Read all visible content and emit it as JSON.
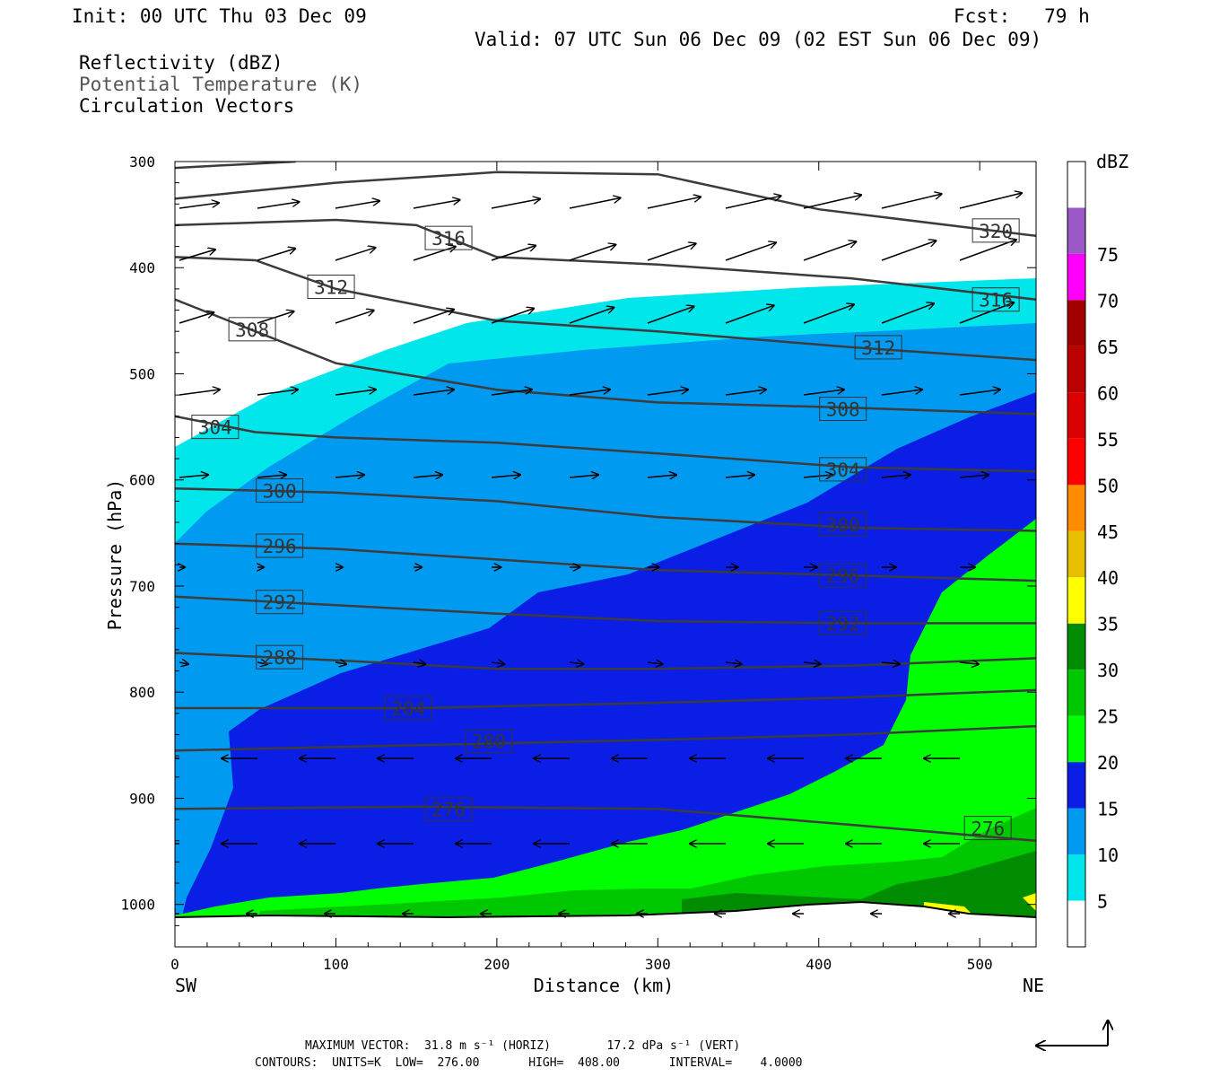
{
  "header": {
    "init": "Init: 00 UTC Thu 03 Dec 09",
    "fcst": "Fcst:   79 h",
    "valid": "Valid: 07 UTC Sun 06 Dec 09 (02 EST Sun 06 Dec 09)",
    "field1": "Reflectivity (dBZ)",
    "field2": "Potential Temperature (K)",
    "field3": "Circulation Vectors"
  },
  "footer": {
    "max_vector": "MAXIMUM VECTOR:  31.8 m s⁻¹ (HORIZ)        17.2 dPa s⁻¹ (VERT)",
    "contours": "CONTOURS:  UNITS=K  LOW=  276.00       HIGH=  408.00       INTERVAL=    4.0000"
  },
  "colors": {
    "c5": "#00e6eb",
    "c10": "#009bf0",
    "c15": "#0a1ee6",
    "c20": "#00ff00",
    "c25": "#00c800",
    "c30": "#008c00",
    "c35": "#ffff00",
    "c40": "#e6c000",
    "c45": "#ff8c00",
    "c50": "#ff0000",
    "c55": "#dc0000",
    "c60": "#bb0000",
    "c65": "#a00000",
    "c70": "#ff00ff",
    "c75": "#9b59c8",
    "contour": "#3c3c3c"
  },
  "chart_data": {
    "type": "heatmap",
    "title": "Reflectivity (dBZ) / Potential Temperature (K) / Circulation Vectors",
    "xlabel": "Distance (km)",
    "ylabel": "Pressure (hPa)",
    "x_ticks": [
      "0",
      "100",
      "200",
      "300",
      "400",
      "500"
    ],
    "y_ticks": [
      "300",
      "400",
      "500",
      "600",
      "700",
      "800",
      "900",
      "1000"
    ],
    "x_range": [
      0,
      535
    ],
    "y_range": [
      300,
      1040
    ],
    "y_reversed": true,
    "x_end_labels": {
      "left": "SW",
      "right": "NE"
    },
    "colorbar": {
      "label": "dBZ",
      "levels": [
        "5",
        "10",
        "15",
        "20",
        "25",
        "30",
        "35",
        "40",
        "45",
        "50",
        "55",
        "60",
        "65",
        "70",
        "75"
      ]
    },
    "contours": [
      {
        "label": "276",
        "points": [
          [
            0,
            910
          ],
          [
            150,
            908
          ],
          [
            300,
            910
          ],
          [
            420,
            925
          ],
          [
            535,
            940
          ]
        ],
        "label_at": [
          [
            170,
            910
          ],
          [
            505,
            928
          ]
        ]
      },
      {
        "label": "280",
        "points": [
          [
            0,
            855
          ],
          [
            150,
            850
          ],
          [
            300,
            845
          ],
          [
            420,
            840
          ],
          [
            535,
            832
          ]
        ],
        "label_at": [
          [
            195,
            846
          ]
        ]
      },
      {
        "label": "284",
        "points": [
          [
            0,
            815
          ],
          [
            150,
            815
          ],
          [
            300,
            810
          ],
          [
            420,
            805
          ],
          [
            535,
            798
          ]
        ],
        "label_at": [
          [
            145,
            815
          ]
        ]
      },
      {
        "label": "288",
        "points": [
          [
            0,
            763
          ],
          [
            100,
            770
          ],
          [
            200,
            778
          ],
          [
            300,
            778
          ],
          [
            420,
            775
          ],
          [
            535,
            768
          ]
        ],
        "label_at": [
          [
            65,
            767
          ]
        ]
      },
      {
        "label": "292",
        "points": [
          [
            0,
            710
          ],
          [
            100,
            718
          ],
          [
            200,
            726
          ],
          [
            300,
            733
          ],
          [
            420,
            735
          ],
          [
            535,
            735
          ]
        ],
        "label_at": [
          [
            65,
            715
          ],
          [
            415,
            735
          ]
        ]
      },
      {
        "label": "296",
        "points": [
          [
            0,
            660
          ],
          [
            100,
            665
          ],
          [
            200,
            675
          ],
          [
            300,
            685
          ],
          [
            420,
            690
          ],
          [
            535,
            695
          ]
        ],
        "label_at": [
          [
            65,
            662
          ],
          [
            415,
            690
          ]
        ]
      },
      {
        "label": "300",
        "points": [
          [
            0,
            608
          ],
          [
            100,
            612
          ],
          [
            200,
            620
          ],
          [
            300,
            635
          ],
          [
            420,
            645
          ],
          [
            535,
            648
          ]
        ],
        "label_at": [
          [
            65,
            610
          ],
          [
            415,
            642
          ]
        ]
      },
      {
        "label": "304",
        "points": [
          [
            0,
            540
          ],
          [
            50,
            555
          ],
          [
            100,
            560
          ],
          [
            200,
            565
          ],
          [
            300,
            575
          ],
          [
            420,
            588
          ],
          [
            535,
            592
          ]
        ],
        "label_at": [
          [
            25,
            550
          ],
          [
            415,
            590
          ]
        ]
      },
      {
        "label": "308",
        "points": [
          [
            0,
            430
          ],
          [
            50,
            460
          ],
          [
            100,
            490
          ],
          [
            200,
            515
          ],
          [
            300,
            527
          ],
          [
            420,
            532
          ],
          [
            535,
            538
          ]
        ],
        "label_at": [
          [
            48,
            458
          ],
          [
            415,
            533
          ]
        ]
      },
      {
        "label": "312",
        "points": [
          [
            0,
            390
          ],
          [
            50,
            393
          ],
          [
            100,
            420
          ],
          [
            200,
            450
          ],
          [
            300,
            460
          ],
          [
            420,
            475
          ],
          [
            535,
            487
          ]
        ],
        "label_at": [
          [
            97,
            418
          ],
          [
            437,
            475
          ]
        ]
      },
      {
        "label": "316",
        "points": [
          [
            0,
            360
          ],
          [
            100,
            355
          ],
          [
            150,
            360
          ],
          [
            200,
            390
          ],
          [
            300,
            397
          ],
          [
            420,
            410
          ],
          [
            535,
            430
          ]
        ],
        "label_at": [
          [
            170,
            372
          ],
          [
            510,
            430
          ]
        ]
      },
      {
        "label": "320",
        "points": [
          [
            0,
            335
          ],
          [
            100,
            320
          ],
          [
            200,
            310
          ],
          [
            300,
            312
          ],
          [
            400,
            345
          ],
          [
            535,
            370
          ]
        ],
        "label_at": [
          [
            510,
            365
          ]
        ]
      },
      {
        "label": "",
        "points": [
          [
            0,
            306
          ],
          [
            75,
            300
          ]
        ],
        "label_at": []
      }
    ]
  }
}
